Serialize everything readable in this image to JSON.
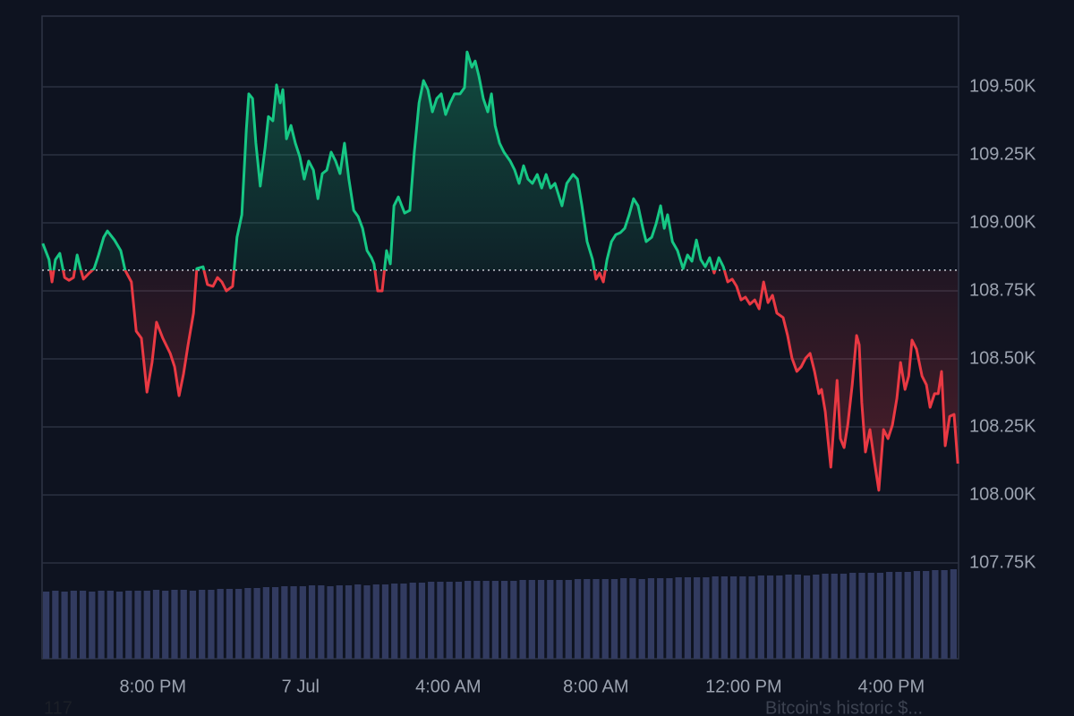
{
  "chart_data": {
    "type": "line",
    "x": [
      17.02,
      17.19,
      17.27,
      17.36,
      17.48,
      17.61,
      17.73,
      17.85,
      17.95,
      18.04,
      18.12,
      18.28,
      18.41,
      18.53,
      18.67,
      18.77,
      18.96,
      19.13,
      19.25,
      19.42,
      19.55,
      19.69,
      19.84,
      19.98,
      20.1,
      20.27,
      20.47,
      20.59,
      20.71,
      20.83,
      20.95,
      21.1,
      21.19,
      21.36,
      21.48,
      21.63,
      21.75,
      21.87,
      21.99,
      22.16,
      22.28,
      22.41,
      22.53,
      22.6,
      22.7,
      22.79,
      22.91,
      23.04,
      23.13,
      23.25,
      23.35,
      23.45,
      23.52,
      23.62,
      23.74,
      23.86,
      23.98,
      24.1,
      24.22,
      24.35,
      24.47,
      24.59,
      24.71,
      24.83,
      24.95,
      25.07,
      25.19,
      25.31,
      25.44,
      25.56,
      25.68,
      25.8,
      25.92,
      25.99,
      26.09,
      26.21,
      26.33,
      26.43,
      26.53,
      26.65,
      26.82,
      26.96,
      27.08,
      27.21,
      27.33,
      27.45,
      27.57,
      27.69,
      27.81,
      27.93,
      28.05,
      28.17,
      28.32,
      28.44,
      28.51,
      28.64,
      28.73,
      28.83,
      28.95,
      29.07,
      29.17,
      29.27,
      29.39,
      29.51,
      29.68,
      29.8,
      29.92,
      30.04,
      30.16,
      30.28,
      30.41,
      30.53,
      30.65,
      30.77,
      30.89,
      31.08,
      31.21,
      31.38,
      31.5,
      31.62,
      31.76,
      31.91,
      32.0,
      32.1,
      32.2,
      32.3,
      32.42,
      32.54,
      32.66,
      32.78,
      32.9,
      33.02,
      33.14,
      33.27,
      33.36,
      33.51,
      33.63,
      33.75,
      33.85,
      33.94,
      34.07,
      34.21,
      34.36,
      34.48,
      34.6,
      34.72,
      34.84,
      34.96,
      35.08,
      35.2,
      35.33,
      35.45,
      35.57,
      35.69,
      35.81,
      35.93,
      36.05,
      36.17,
      36.3,
      36.42,
      36.54,
      36.66,
      36.78,
      36.9,
      37.07,
      37.19,
      37.31,
      37.44,
      37.56,
      37.68,
      37.8,
      37.92,
      38.04,
      38.11,
      38.21,
      38.28,
      38.36,
      38.45,
      38.53,
      38.62,
      38.72,
      38.82,
      38.94,
      39.06,
      39.13,
      39.2,
      39.3,
      39.42,
      39.54,
      39.66,
      39.79,
      39.91,
      40.03,
      40.15,
      40.25,
      40.37,
      40.47,
      40.56,
      40.68,
      40.83,
      40.95,
      41.05,
      41.17,
      41.27,
      41.36,
      41.46,
      41.58,
      41.7,
      41.8
    ],
    "values": [
      108924,
      108865,
      108783,
      108865,
      108888,
      108799,
      108789,
      108799,
      108882,
      108832,
      108793,
      108816,
      108832,
      108882,
      108947,
      108970,
      108937,
      108898,
      108826,
      108783,
      108602,
      108576,
      108378,
      108487,
      108635,
      108576,
      108520,
      108471,
      108365,
      108444,
      108549,
      108668,
      108832,
      108839,
      108773,
      108767,
      108799,
      108783,
      108750,
      108767,
      108947,
      109030,
      109342,
      109474,
      109457,
      109293,
      109135,
      109276,
      109391,
      109375,
      109507,
      109441,
      109490,
      109309,
      109358,
      109293,
      109243,
      109161,
      109227,
      109194,
      109089,
      109181,
      109194,
      109260,
      109227,
      109181,
      109293,
      109161,
      109046,
      109023,
      108980,
      108898,
      108872,
      108849,
      108750,
      108750,
      108898,
      108849,
      109063,
      109095,
      109036,
      109046,
      109260,
      109441,
      109523,
      109490,
      109408,
      109457,
      109474,
      109398,
      109441,
      109474,
      109474,
      109497,
      109628,
      109572,
      109595,
      109539,
      109457,
      109408,
      109474,
      109358,
      109293,
      109260,
      109227,
      109194,
      109145,
      109210,
      109161,
      109145,
      109178,
      109128,
      109178,
      109128,
      109145,
      109063,
      109145,
      109178,
      109161,
      109063,
      108931,
      108865,
      108793,
      108816,
      108783,
      108865,
      108931,
      108957,
      108964,
      108980,
      109030,
      109089,
      109063,
      108980,
      108931,
      108947,
      108997,
      109063,
      108980,
      109030,
      108931,
      108898,
      108832,
      108882,
      108859,
      108937,
      108865,
      108839,
      108872,
      108816,
      108872,
      108839,
      108783,
      108793,
      108767,
      108717,
      108727,
      108701,
      108717,
      108684,
      108783,
      108707,
      108734,
      108668,
      108652,
      108586,
      108503,
      108454,
      108471,
      108503,
      108520,
      108454,
      108372,
      108388,
      108306,
      108207,
      108102,
      108273,
      108421,
      108207,
      108174,
      108257,
      108405,
      108586,
      108552,
      108339,
      108158,
      108240,
      108125,
      108017,
      108240,
      108207,
      108257,
      108355,
      108487,
      108388,
      108437,
      108569,
      108536,
      108437,
      108405,
      108322,
      108372,
      108372,
      108454,
      108181,
      108289,
      108296,
      108115
    ],
    "baseline": 108826,
    "up_color": "#16c784",
    "down_color": "#ea3943",
    "xlim": [
      17,
      41.82
    ],
    "xticks": [
      {
        "value": 20,
        "label": "8:00 PM"
      },
      {
        "value": 24,
        "label": "7 Jul"
      },
      {
        "value": 28,
        "label": "4:00 AM"
      },
      {
        "value": 32,
        "label": "8:00 AM"
      },
      {
        "value": 36,
        "label": "12:00 PM"
      },
      {
        "value": 40,
        "label": "4:00 PM"
      }
    ],
    "ylim": [
      107398,
      109760
    ],
    "yticks": [
      {
        "value": 109500,
        "label": "109.50K"
      },
      {
        "value": 109250,
        "label": "109.25K"
      },
      {
        "value": 109000,
        "label": "109.00K"
      },
      {
        "value": 108750,
        "label": "108.75K"
      },
      {
        "value": 108500,
        "label": "108.50K"
      },
      {
        "value": 108250,
        "label": "108.25K"
      },
      {
        "value": 108000,
        "label": "108.00K"
      },
      {
        "value": 107750,
        "label": "107.75K"
      }
    ],
    "grid": true,
    "volume": {
      "color": "#323b60",
      "ylim": [
        0,
        100
      ],
      "values": [
        75,
        76,
        75,
        76,
        76,
        75,
        76,
        76,
        75,
        76,
        76,
        76,
        77,
        76,
        77,
        77,
        76,
        77,
        77,
        78,
        78,
        78,
        79,
        79,
        80,
        80,
        81,
        81,
        81,
        82,
        82,
        81,
        82,
        82,
        83,
        82,
        83,
        83,
        84,
        84,
        85,
        85,
        86,
        86,
        86,
        86,
        87,
        87,
        87,
        87,
        87,
        87,
        88,
        88,
        88,
        88,
        88,
        88,
        89,
        89,
        89,
        89,
        89,
        90,
        90,
        89,
        90,
        90,
        90,
        91,
        91,
        91,
        91,
        92,
        92,
        92,
        92,
        92,
        93,
        93,
        93,
        94,
        94,
        93,
        94,
        95,
        95,
        95,
        96,
        96,
        96,
        96,
        97,
        97,
        97,
        98,
        98,
        99,
        99,
        100
      ]
    }
  },
  "footer": {
    "left": "117",
    "right": "Bitcoin's historic $..."
  }
}
